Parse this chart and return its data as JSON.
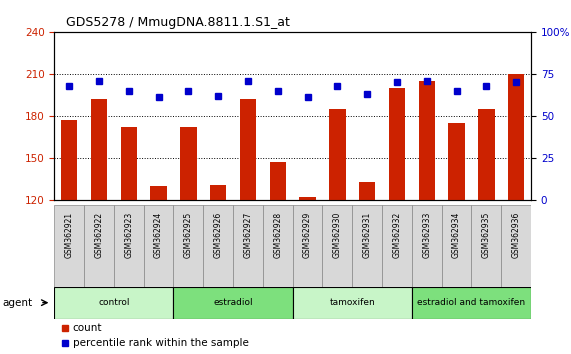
{
  "title": "GDS5278 / MmugDNA.8811.1.S1_at",
  "samples": [
    "GSM362921",
    "GSM362922",
    "GSM362923",
    "GSM362924",
    "GSM362925",
    "GSM362926",
    "GSM362927",
    "GSM362928",
    "GSM362929",
    "GSM362930",
    "GSM362931",
    "GSM362932",
    "GSM362933",
    "GSM362934",
    "GSM362935",
    "GSM362936"
  ],
  "counts": [
    177,
    192,
    172,
    130,
    172,
    131,
    192,
    147,
    122,
    185,
    133,
    200,
    205,
    175,
    185,
    210
  ],
  "percentile_ranks": [
    68,
    71,
    65,
    61,
    65,
    62,
    71,
    65,
    61,
    68,
    63,
    70,
    71,
    65,
    68,
    70
  ],
  "groups": [
    {
      "label": "control",
      "start": 0,
      "end": 4,
      "color": "#c8f5c8"
    },
    {
      "label": "estradiol",
      "start": 4,
      "end": 8,
      "color": "#7de07d"
    },
    {
      "label": "tamoxifen",
      "start": 8,
      "end": 12,
      "color": "#c8f5c8"
    },
    {
      "label": "estradiol and tamoxifen",
      "start": 12,
      "end": 16,
      "color": "#7de07d"
    }
  ],
  "ylim_left": [
    120,
    240
  ],
  "ylim_right": [
    0,
    100
  ],
  "yticks_left": [
    120,
    150,
    180,
    210,
    240
  ],
  "yticks_right": [
    0,
    25,
    50,
    75,
    100
  ],
  "bar_color": "#cc2200",
  "dot_color": "#0000cc",
  "bg_color": "#ffffff",
  "plot_bg": "#ffffff",
  "left_tick_color": "#cc2200",
  "right_tick_color": "#0000cc",
  "agent_label": "agent",
  "legend_count_label": "count",
  "legend_pct_label": "percentile rank within the sample",
  "bar_width": 0.55,
  "gridline_yticks": [
    150,
    180,
    210
  ]
}
